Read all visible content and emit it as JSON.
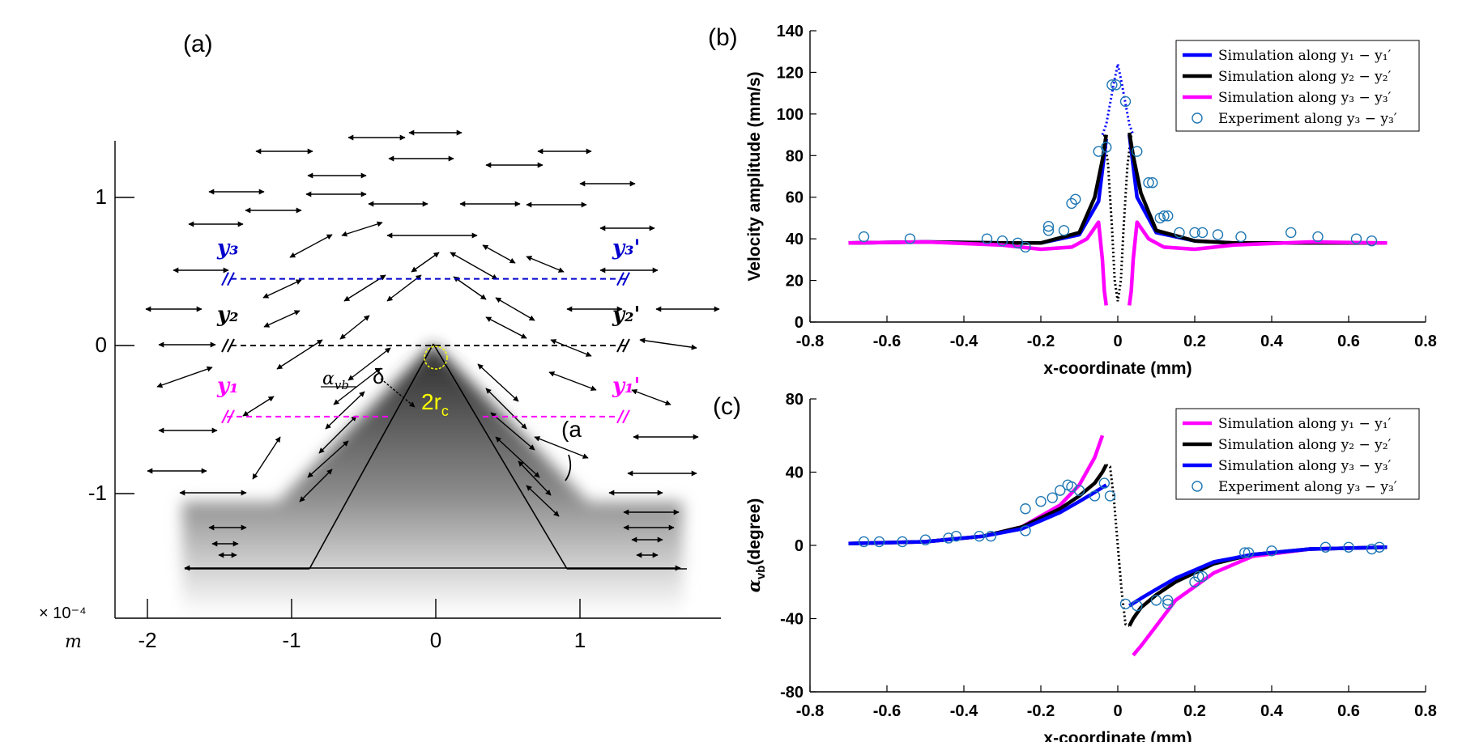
{
  "panel_labels": {
    "a": "(a)",
    "b": "(b)",
    "c": "(c)"
  },
  "panel_a": {
    "scale_label": "× 10⁻⁴",
    "unit_label": "m",
    "x_ticks": [
      "-2",
      "-1",
      "0",
      "1"
    ],
    "x_tick_values": [
      -2,
      -1,
      0,
      1
    ],
    "y_ticks": [
      "1",
      "0",
      "-1"
    ],
    "y_tick_values": [
      1,
      0,
      -1
    ],
    "lines": [
      {
        "left": "y₁",
        "right": "y₁'",
        "color": "#ff00ff",
        "y": -0.48
      },
      {
        "left": "y₂",
        "right": "y₂'",
        "color": "#000000",
        "y": 0.0
      },
      {
        "left": "y₃",
        "right": "y₃'",
        "color": "#0000cc",
        "y": 0.45
      }
    ],
    "annotations": {
      "delta": "δ",
      "radius": "2r",
      "radius_sub": "c",
      "angle": "α",
      "angle_sub": "vb",
      "angle_mark": "(a"
    },
    "colors": {
      "shade_dark": "#111111",
      "shade_light": "#ffffff",
      "radius_color": "#ffff00"
    }
  },
  "chart_data": [
    {
      "id": "b",
      "type": "line",
      "title": "",
      "xlabel": "x-coordinate (mm)",
      "ylabel": "Velocity amplitude (mm/s)",
      "xlim": [
        -0.8,
        0.8
      ],
      "ylim": [
        0,
        140
      ],
      "x_ticks": [
        -0.8,
        -0.6,
        -0.4,
        -0.2,
        0,
        0.2,
        0.4,
        0.6,
        0.8
      ],
      "x_tick_labels": [
        "-0.8",
        "-0.6",
        "-0.4",
        "-0.2",
        "0",
        "0.2",
        "0.4",
        "0.6",
        "0.8"
      ],
      "y_ticks": [
        0,
        20,
        40,
        60,
        80,
        100,
        120,
        140
      ],
      "y_tick_labels": [
        "0",
        "20",
        "40",
        "60",
        "80",
        "100",
        "120",
        "140"
      ],
      "legend_position": "top-right",
      "series": [
        {
          "name": "Simulation along y₁ − y₁′",
          "color": "#0000ff",
          "style": "line",
          "x": [
            -0.7,
            -0.5,
            -0.3,
            -0.2,
            -0.1,
            -0.05,
            -0.03,
            0.03,
            0.05,
            0.1,
            0.2,
            0.3,
            0.5,
            0.7
          ],
          "y": [
            38,
            38.5,
            38,
            38,
            42,
            58,
            88,
            90,
            60,
            43,
            39,
            38,
            38,
            38
          ]
        },
        {
          "name": "Simulation along y₂ − y₂′",
          "color": "#000000",
          "style": "line",
          "x": [
            -0.7,
            -0.5,
            -0.3,
            -0.2,
            -0.1,
            -0.06,
            -0.04,
            -0.03,
            0.03,
            0.04,
            0.06,
            0.1,
            0.2,
            0.3,
            0.5,
            0.7
          ],
          "y": [
            38,
            38.5,
            38,
            38,
            43,
            60,
            78,
            90,
            91,
            80,
            62,
            44,
            39,
            38,
            38,
            38
          ]
        },
        {
          "name": "Simulation along y₃ − y₃′",
          "color": "#ff00ff",
          "style": "line",
          "x": [
            -0.7,
            -0.5,
            -0.3,
            -0.2,
            -0.12,
            -0.08,
            -0.05,
            -0.04,
            -0.035,
            -0.03,
            0.03,
            0.035,
            0.04,
            0.05,
            0.08,
            0.12,
            0.2,
            0.3,
            0.5,
            0.7
          ],
          "y": [
            38,
            38.5,
            37,
            35,
            36,
            40,
            48,
            30,
            15,
            8,
            8,
            15,
            30,
            48,
            40,
            36,
            35,
            37,
            38.5,
            38
          ]
        },
        {
          "name": "Experiment along y₃ − y₃′",
          "color": "#1f77b4",
          "style": "marker",
          "x": [
            -0.66,
            -0.54,
            -0.34,
            -0.3,
            -0.26,
            -0.24,
            -0.18,
            -0.18,
            -0.14,
            -0.12,
            -0.11,
            -0.05,
            -0.03,
            -0.015,
            -0.005,
            0.02,
            0.05,
            0.08,
            0.09,
            0.11,
            0.12,
            0.13,
            0.16,
            0.2,
            0.22,
            0.26,
            0.32,
            0.45,
            0.52,
            0.62,
            0.66
          ],
          "y": [
            41,
            40,
            40,
            39,
            38,
            36,
            46,
            44,
            44,
            57,
            59,
            82,
            84,
            114,
            114,
            106,
            82,
            67,
            67,
            50,
            51,
            51,
            43,
            43,
            43,
            42,
            41,
            43,
            41,
            40,
            39
          ]
        }
      ],
      "extra_dotted": [
        {
          "color": "#0000ff",
          "x": [
            -0.04,
            -0.03,
            -0.02,
            -0.01,
            0.0,
            0.01,
            0.02,
            0.03,
            0.04
          ],
          "y": [
            90,
            95,
            105,
            115,
            124,
            115,
            105,
            95,
            90
          ]
        },
        {
          "color": "#000000",
          "x": [
            -0.035,
            -0.025,
            -0.015,
            -0.008,
            0.0,
            0.008,
            0.015,
            0.025,
            0.035
          ],
          "y": [
            90,
            75,
            45,
            20,
            10,
            20,
            45,
            75,
            90
          ]
        }
      ],
      "legend": [
        {
          "label": "Simulation along y₁ − y₁′",
          "color": "#0000ff",
          "style": "line"
        },
        {
          "label": "Simulation along y₂ − y₂′",
          "color": "#000000",
          "style": "line"
        },
        {
          "label": "Simulation along y₃ − y₃′",
          "color": "#ff00ff",
          "style": "line"
        },
        {
          "label": "Experiment along y₃ − y₃′",
          "color": "#1f77b4",
          "style": "marker"
        }
      ]
    },
    {
      "id": "c",
      "type": "line",
      "title": "",
      "xlabel": "x-coordinate (mm)",
      "ylabel": "α",
      "ylabel_sub": "vb",
      "ylabel_rest": "(degree)",
      "xlim": [
        -0.8,
        0.8
      ],
      "ylim": [
        -80,
        80
      ],
      "x_ticks": [
        -0.8,
        -0.6,
        -0.4,
        -0.2,
        0,
        0.2,
        0.4,
        0.6,
        0.8
      ],
      "x_tick_labels": [
        "-0.8",
        "-0.6",
        "-0.4",
        "-0.2",
        "0",
        "0.2",
        "0.4",
        "0.6",
        "0.8"
      ],
      "y_ticks": [
        -80,
        -40,
        0,
        40,
        80
      ],
      "y_tick_labels": [
        "-80",
        "-40",
        "0",
        "40",
        "80"
      ],
      "legend_position": "top-right",
      "series": [
        {
          "name": "Simulation along y₁ − y₁′",
          "color": "#ff00ff",
          "style": "line",
          "x": [
            -0.7,
            -0.5,
            -0.35,
            -0.25,
            -0.15,
            -0.1,
            -0.06,
            -0.04,
            0.04,
            0.06,
            0.1,
            0.15,
            0.25,
            0.35,
            0.5,
            0.7
          ],
          "y": [
            1,
            2,
            5,
            10,
            22,
            33,
            48,
            60,
            -60,
            -55,
            -44,
            -30,
            -15,
            -6,
            -2,
            -1
          ]
        },
        {
          "name": "Simulation along y₂ − y₂′",
          "color": "#000000",
          "style": "line",
          "x": [
            -0.7,
            -0.5,
            -0.35,
            -0.25,
            -0.15,
            -0.1,
            -0.06,
            -0.04,
            -0.03,
            0.03,
            0.04,
            0.06,
            0.1,
            0.15,
            0.25,
            0.35,
            0.5,
            0.7
          ],
          "y": [
            1,
            2,
            5,
            10,
            20,
            27,
            34,
            40,
            44,
            -44,
            -40,
            -34,
            -27,
            -20,
            -10,
            -5,
            -2,
            -1
          ]
        },
        {
          "name": "Simulation along y₃ − y₃′",
          "color": "#0000ff",
          "style": "line",
          "x": [
            -0.7,
            -0.5,
            -0.35,
            -0.25,
            -0.15,
            -0.1,
            -0.06,
            -0.03,
            0.03,
            0.06,
            0.1,
            0.15,
            0.25,
            0.35,
            0.5,
            0.7
          ],
          "y": [
            1,
            2,
            5,
            9,
            18,
            24,
            29,
            33,
            -33,
            -29,
            -24,
            -18,
            -9,
            -5,
            -2,
            -1
          ]
        },
        {
          "name": "Experiment along y₃ − y₃′",
          "color": "#1f77b4",
          "style": "marker",
          "x": [
            -0.66,
            -0.62,
            -0.56,
            -0.5,
            -0.44,
            -0.42,
            -0.36,
            -0.33,
            -0.24,
            -0.24,
            -0.2,
            -0.17,
            -0.15,
            -0.13,
            -0.12,
            -0.1,
            -0.06,
            -0.035,
            -0.02,
            0.02,
            0.05,
            0.1,
            0.13,
            0.13,
            0.2,
            0.21,
            0.22,
            0.33,
            0.34,
            0.4,
            0.54,
            0.6,
            0.66,
            0.68
          ],
          "y": [
            2,
            2,
            2,
            3,
            4,
            5,
            5,
            5,
            8,
            20,
            24,
            26,
            30,
            33,
            32,
            30,
            27,
            34,
            27,
            -32,
            -33,
            -30,
            -30,
            -32,
            -20,
            -17,
            -17,
            -4,
            -4,
            -3,
            -1,
            -1,
            -2,
            -1
          ]
        }
      ],
      "extra_dotted": [
        {
          "color": "#000000",
          "x": [
            -0.03,
            -0.02,
            -0.01,
            0.0,
            0.01,
            0.02,
            0.03
          ],
          "y": [
            44,
            43,
            25,
            0,
            -25,
            -43,
            -44
          ]
        }
      ],
      "legend": [
        {
          "label": "Simulation along y₁ − y₁′",
          "color": "#ff00ff",
          "style": "line"
        },
        {
          "label": "Simulation along y₂ − y₂′",
          "color": "#000000",
          "style": "line"
        },
        {
          "label": "Simulation along y₃ − y₃′",
          "color": "#0000ff",
          "style": "line"
        },
        {
          "label": "Experiment along y₃ − y₃′",
          "color": "#1f77b4",
          "style": "marker"
        }
      ]
    }
  ]
}
